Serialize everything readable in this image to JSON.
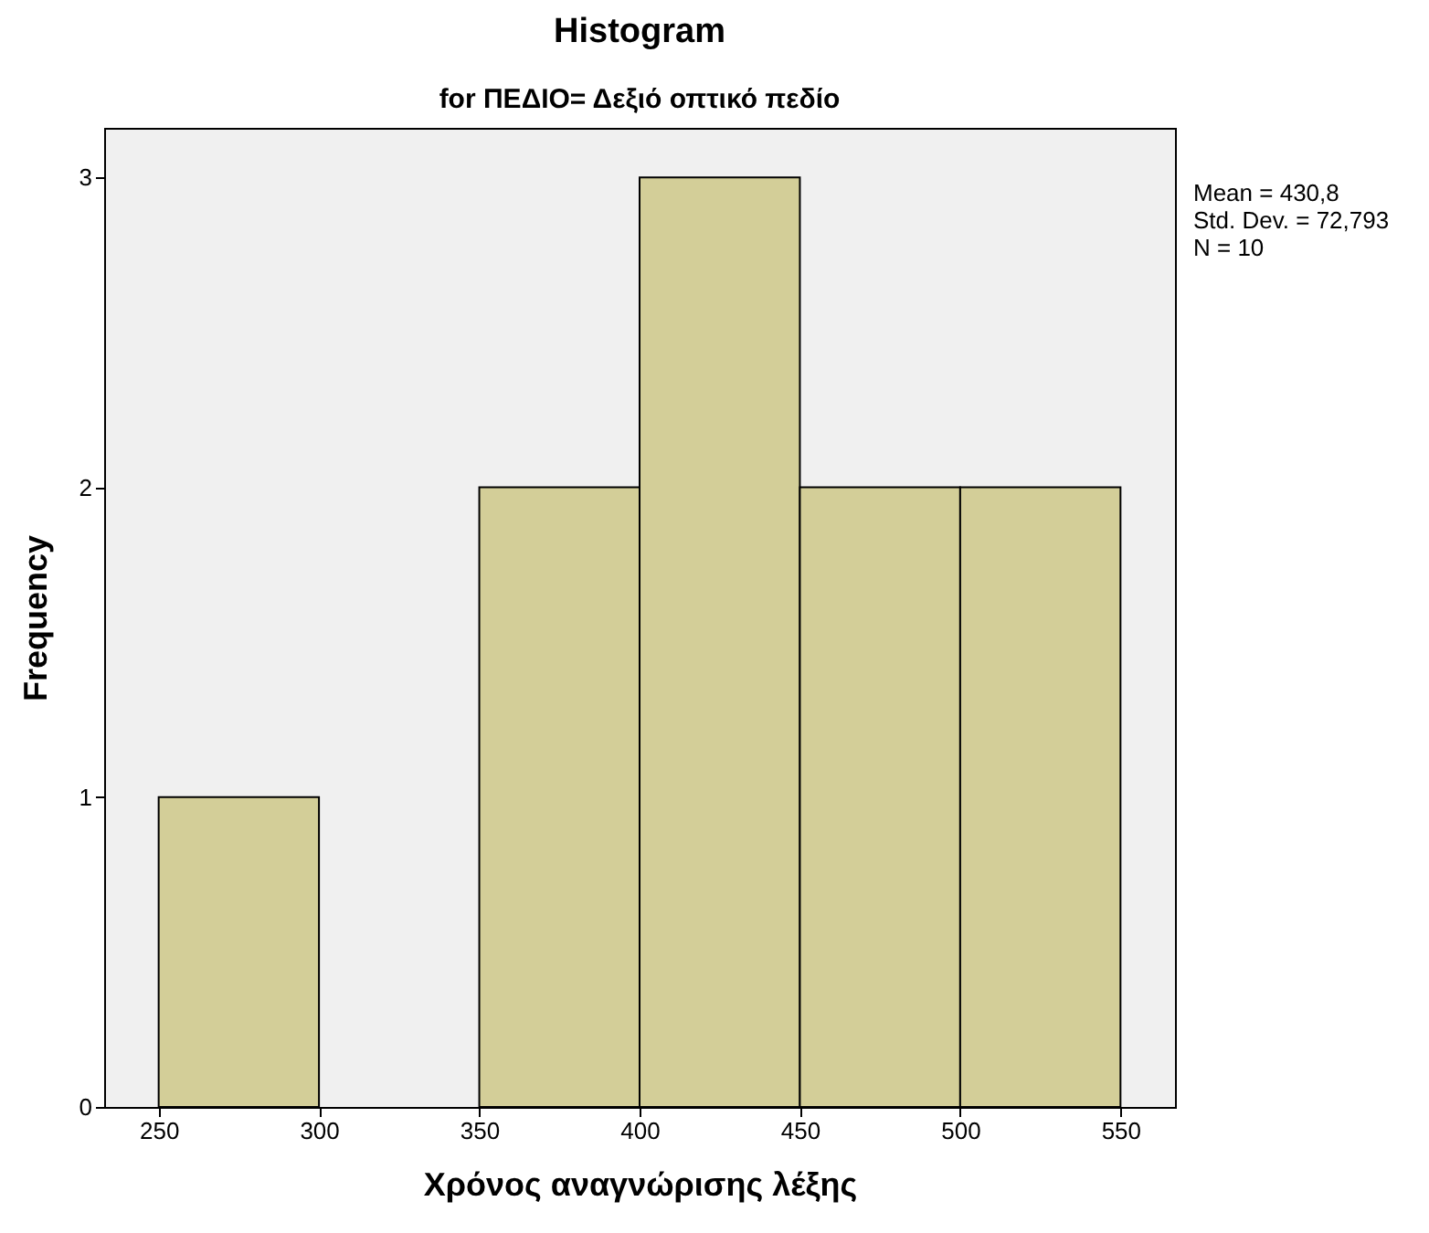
{
  "chart_data": {
    "type": "histogram",
    "title": "Histogram",
    "subtitle": "for ΠΕΔΙΟ= Δεξιό οπτικό πεδίο",
    "xlabel": "Χρόνος αναγνώρισης λέξης",
    "ylabel": "Frequency",
    "bins": [
      250,
      300,
      350,
      400,
      450,
      500,
      550
    ],
    "values": [
      1,
      0,
      2,
      3,
      2,
      2
    ],
    "color": "#d3ce98",
    "xlim": [
      233,
      567
    ],
    "xticks": [
      250,
      300,
      350,
      400,
      450,
      500,
      550
    ],
    "ylim": [
      0,
      3.16
    ],
    "yticks": [
      0,
      1,
      2,
      3
    ],
    "annotations": [
      "Mean = 430,8",
      "Std. Dev. = 72,793",
      "N = 10"
    ]
  }
}
